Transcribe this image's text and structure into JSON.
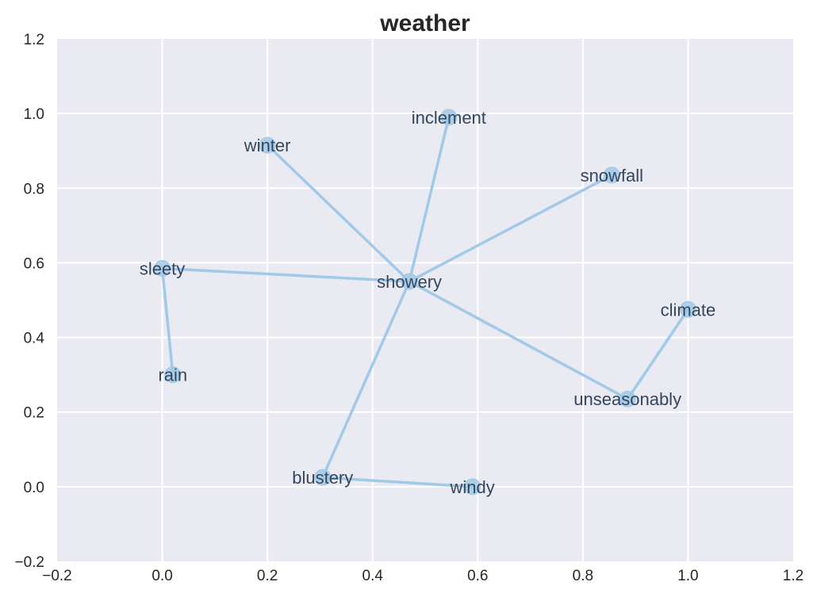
{
  "chart_data": {
    "type": "scatter",
    "title": "weather",
    "xlabel": "",
    "ylabel": "",
    "xlim": [
      -0.2,
      1.2
    ],
    "ylim": [
      -0.2,
      1.2
    ],
    "xticks": [
      "−0.2",
      "0.0",
      "0.2",
      "0.4",
      "0.6",
      "0.8",
      "1.0",
      "1.2"
    ],
    "yticks": [
      "−0.2",
      "0.0",
      "0.2",
      "0.4",
      "0.6",
      "0.8",
      "1.0",
      "1.2"
    ],
    "grid": true,
    "colors": {
      "background": "#eaeaf2",
      "grid": "#ffffff",
      "edge": "#a1c9e8",
      "node": "#a1c9e8",
      "label": "#34465e"
    },
    "nodes": [
      {
        "label": "showery",
        "x": 0.47,
        "y": 0.55
      },
      {
        "label": "inclement",
        "x": 0.545,
        "y": 0.99
      },
      {
        "label": "winter",
        "x": 0.2,
        "y": 0.915
      },
      {
        "label": "snowfall",
        "x": 0.855,
        "y": 0.835
      },
      {
        "label": "sleety",
        "x": 0.0,
        "y": 0.585
      },
      {
        "label": "climate",
        "x": 1.0,
        "y": 0.475
      },
      {
        "label": "rain",
        "x": 0.02,
        "y": 0.3
      },
      {
        "label": "unseasonably",
        "x": 0.885,
        "y": 0.235
      },
      {
        "label": "blustery",
        "x": 0.305,
        "y": 0.025
      },
      {
        "label": "windy",
        "x": 0.59,
        "y": 0.0
      }
    ],
    "edges": [
      [
        "showery",
        "inclement"
      ],
      [
        "showery",
        "winter"
      ],
      [
        "showery",
        "snowfall"
      ],
      [
        "showery",
        "sleety"
      ],
      [
        "showery",
        "unseasonably"
      ],
      [
        "showery",
        "blustery"
      ],
      [
        "sleety",
        "rain"
      ],
      [
        "climate",
        "unseasonably"
      ],
      [
        "blustery",
        "windy"
      ]
    ]
  }
}
